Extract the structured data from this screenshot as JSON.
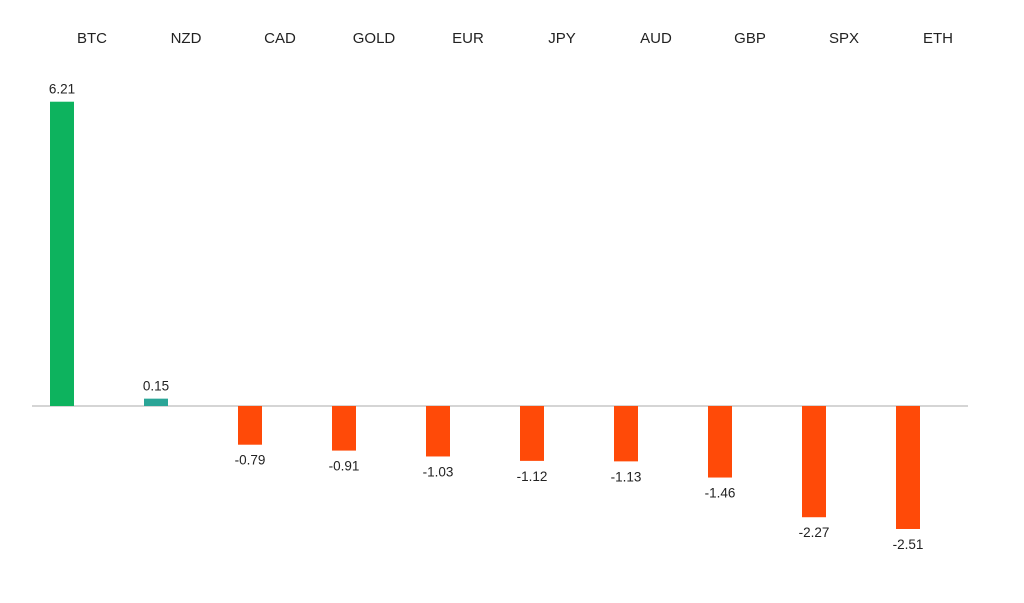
{
  "chart_data": {
    "type": "bar",
    "categories": [
      "BTC",
      "NZD",
      "CAD",
      "GOLD",
      "EUR",
      "JPY",
      "AUD",
      "GBP",
      "SPX",
      "ETH"
    ],
    "values": [
      6.21,
      0.15,
      -0.79,
      -0.91,
      -1.03,
      -1.12,
      -1.13,
      -1.46,
      -2.27,
      -2.51
    ],
    "value_labels": [
      "6.21",
      "0.15",
      "-0.79",
      "-0.91",
      "-1.03",
      "-1.12",
      "-1.13",
      "-1.46",
      "-2.27",
      "-2.51"
    ],
    "bar_colors": [
      "#0db35e",
      "#2aa597",
      "#ff4a08",
      "#ff4a08",
      "#ff4a08",
      "#ff4a08",
      "#ff4a08",
      "#ff4a08",
      "#ff4a08",
      "#ff4a08"
    ],
    "axis_color": "#c7c7c7",
    "category_label_position": "top",
    "grid": false,
    "legend": "none",
    "title": "",
    "xlabel": "",
    "ylabel": ""
  }
}
